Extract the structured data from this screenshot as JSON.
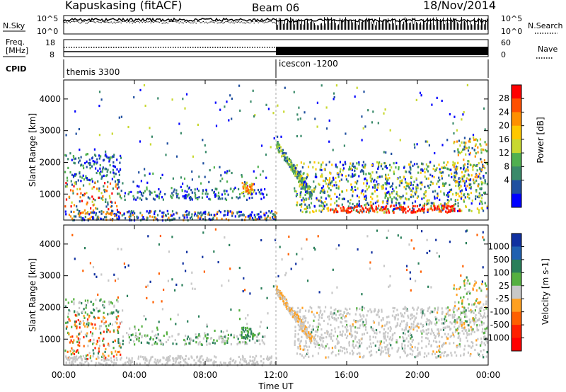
{
  "header": {
    "station": "Kapuskasing (fitACF)",
    "beam": "Beam 06",
    "date": "18/Nov/2014"
  },
  "nsky_panel": {
    "left_label": "N.Sky",
    "right_label": "N.Search",
    "left_ticks": [
      "10^5",
      "10^0"
    ],
    "right_ticks": [
      "10^5",
      "10^0"
    ]
  },
  "freq_panel": {
    "left_label_line1": "Freq.",
    "left_label_line2": "[MHz]",
    "right_label": "Nave",
    "left_ticks": [
      "18",
      "8"
    ],
    "right_ticks": [
      "60",
      "0"
    ]
  },
  "cpid": {
    "label": "CPID",
    "segments": [
      {
        "name": "themis 3300",
        "start_hour": 0
      },
      {
        "name": "icescon -1200",
        "start_hour": 12
      }
    ]
  },
  "chart_data": [
    {
      "type": "heatmap",
      "name": "Power",
      "ylabel": "Slant Range [km]",
      "xlabel": "Time UT",
      "xlim": [
        0,
        24
      ],
      "ylim": [
        180,
        4600
      ],
      "y_ticks": [
        1000,
        2000,
        3000,
        4000
      ],
      "colorbar": {
        "label": "Power [dB]",
        "ticks": [
          "28",
          "24",
          "20",
          "16",
          "12",
          "8",
          "4"
        ],
        "colors": [
          "#ff0000",
          "#ff5000",
          "#ff9000",
          "#ffc800",
          "#c8d830",
          "#50b050",
          "#3a8a6a",
          "#2050a0",
          "#0000ff"
        ]
      }
    },
    {
      "type": "heatmap",
      "name": "Velocity",
      "ylabel": "Slant Range [km]",
      "xlabel": "Time UT",
      "xlim": [
        0,
        24
      ],
      "ylim": [
        180,
        4600
      ],
      "y_ticks": [
        1000,
        2000,
        3000,
        4000
      ],
      "colorbar": {
        "label": "Velocity [m s-1]",
        "ticks": [
          "1000",
          "500",
          "100",
          "25",
          "-25",
          "-100",
          "-500",
          "-1000"
        ],
        "colors": [
          "#1030a0",
          "#2060b0",
          "#2a7f5a",
          "#55b040",
          "#c8c8c8",
          "#ffa020",
          "#ff6000",
          "#ff2000",
          "#ff0000"
        ]
      }
    }
  ],
  "x_axis": {
    "ticks": [
      "00:00",
      "04:00",
      "08:00",
      "12:00",
      "16:00",
      "20:00",
      "00:00"
    ],
    "label": "Time UT"
  }
}
